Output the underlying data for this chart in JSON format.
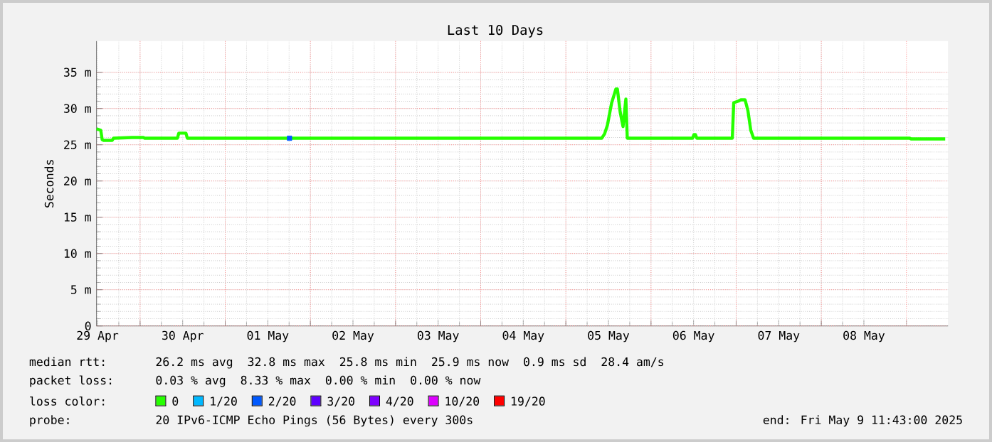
{
  "chart_data": {
    "type": "line",
    "title": "Last 10 Days",
    "ylabel": "Seconds",
    "xlim": [
      "2025-04-29T11:43",
      "2025-05-09T11:43"
    ],
    "xticks": [
      {
        "value": "2025-04-29T12:00",
        "label": "29 Apr"
      },
      {
        "value": "2025-04-30T12:00",
        "label": "30 Apr"
      },
      {
        "value": "2025-05-01T12:00",
        "label": "01 May"
      },
      {
        "value": "2025-05-02T12:00",
        "label": "02 May"
      },
      {
        "value": "2025-05-03T12:00",
        "label": "03 May"
      },
      {
        "value": "2025-05-04T12:00",
        "label": "04 May"
      },
      {
        "value": "2025-05-05T12:00",
        "label": "05 May"
      },
      {
        "value": "2025-05-06T12:00",
        "label": "06 May"
      },
      {
        "value": "2025-05-07T12:00",
        "label": "07 May"
      },
      {
        "value": "2025-05-08T12:00",
        "label": "08 May"
      },
      {
        "value": "2025-04-30T00:00",
        "label": null
      },
      {
        "value": "2025-05-01T00:00",
        "label": null
      },
      {
        "value": "2025-05-02T00:00",
        "label": null
      },
      {
        "value": "2025-05-03T00:00",
        "label": null
      },
      {
        "value": "2025-05-04T00:00",
        "label": null
      },
      {
        "value": "2025-05-05T00:00",
        "label": null
      },
      {
        "value": "2025-05-06T00:00",
        "label": null
      },
      {
        "value": "2025-05-07T00:00",
        "label": null
      },
      {
        "value": "2025-05-08T00:00",
        "label": null
      },
      {
        "value": "2025-05-09T00:00",
        "label": null
      }
    ],
    "ylim": [
      0,
      39.3
    ],
    "yticks": [
      0,
      {
        "value": 5,
        "label": "5 m"
      },
      {
        "value": 10,
        "label": "10 m"
      },
      {
        "value": 15,
        "label": "15 m"
      },
      {
        "value": 20,
        "label": "20 m"
      },
      {
        "value": 25,
        "label": "25 m"
      },
      {
        "value": 30,
        "label": "30 m"
      },
      {
        "value": 35,
        "label": "35 m"
      }
    ],
    "grid": true,
    "legend": "bottom",
    "legend_title": "loss color:",
    "series": [
      {
        "name": "0",
        "color": "#26ff00",
        "x": [
          "2025-04-29T11:43",
          "2025-04-29T12:55",
          "2025-04-29T13:19",
          "2025-04-29T13:43",
          "2025-04-29T16:07",
          "2025-04-29T16:31",
          "2025-04-29T21:43",
          "2025-04-30T00:55",
          "2025-04-30T01:19",
          "2025-04-30T10:31",
          "2025-04-30T10:55",
          "2025-04-30T12:55",
          "2025-04-30T13:19",
          "2025-05-01T17:43",
          "2025-05-01T18:31",
          "2025-05-05T10:07",
          "2025-05-05T10:55",
          "2025-05-05T11:43",
          "2025-05-05T12:55",
          "2025-05-05T14:07",
          "2025-05-05T14:31",
          "2025-05-05T15:19",
          "2025-05-05T16:07",
          "2025-05-05T16:55",
          "2025-05-05T17:19",
          "2025-05-06T11:43",
          "2025-05-06T12:07",
          "2025-05-06T12:31",
          "2025-05-06T12:55",
          "2025-05-06T22:55",
          "2025-05-06T23:19",
          "2025-05-07T00:31",
          "2025-05-07T01:19",
          "2025-05-07T02:31",
          "2025-05-07T03:19",
          "2025-05-07T04:07",
          "2025-05-07T04:55",
          "2025-05-09T00:55",
          "2025-05-09T01:19",
          "2025-05-09T10:55"
        ],
        "values": [
          27.2,
          27.0,
          25.7,
          25.6,
          25.6,
          25.9,
          26.0,
          26.0,
          25.9,
          25.9,
          26.6,
          26.6,
          25.9,
          25.9,
          25.9,
          25.9,
          26.5,
          27.7,
          30.8,
          32.7,
          32.7,
          29.5,
          27.5,
          31.3,
          25.9,
          25.9,
          26.4,
          26.4,
          25.9,
          25.9,
          30.8,
          31.0,
          31.2,
          31.2,
          29.7,
          27.0,
          25.9,
          25.9,
          25.8,
          25.8
        ]
      },
      {
        "name": "1/20",
        "color": "#00b8ff"
      },
      {
        "name": "2/20",
        "color": "#0059ff",
        "type": "scatter",
        "x": [
          "2025-05-01T18:07"
        ],
        "values": [
          25.9
        ]
      },
      {
        "name": "3/20",
        "color": "#5e00ff"
      },
      {
        "name": "4/20",
        "color": "#7e00ff"
      },
      {
        "name": "10/20",
        "color": "#dd00ff"
      },
      {
        "name": "19/20",
        "color": "#ff0000"
      }
    ],
    "annotations": [
      "median rtt:",
      "26.2 ms avg",
      "32.8 ms max",
      "25.8 ms min",
      "25.9 ms now",
      "0.9 ms sd",
      "28.4 am/s",
      "packet loss:",
      "0.03 % avg",
      "8.33 % max",
      "0.00 % min",
      "0.00 % now",
      "probe:",
      "20 IPv6-ICMP Echo Pings (56 Bytes) every 300s",
      "end: Fri May 9 11:43:00 2025"
    ]
  }
}
